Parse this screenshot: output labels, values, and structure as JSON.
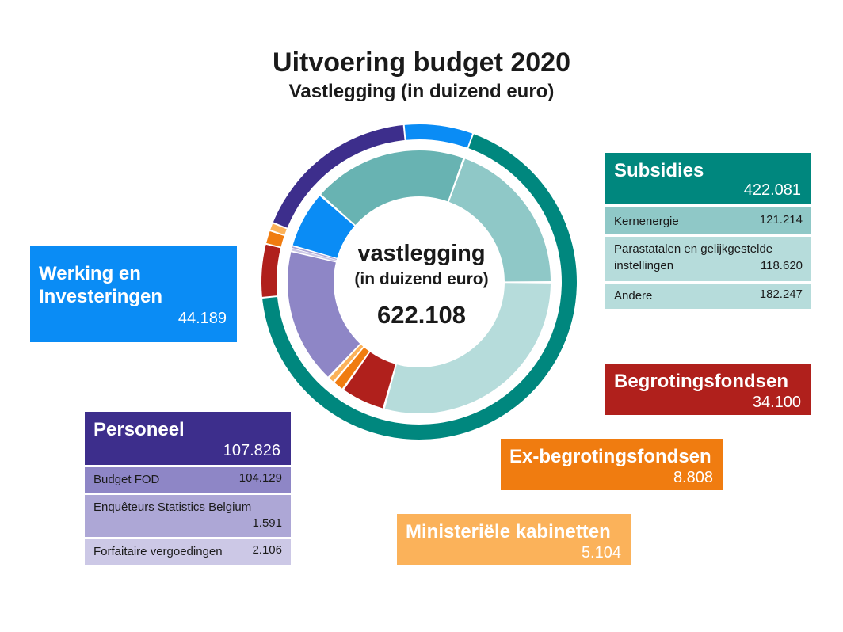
{
  "title": "Uitvoering budget 2020",
  "subtitle": "Vastlegging (in duizend euro)",
  "center": {
    "line1": "vastlegging",
    "line2": "(in duizend euro)",
    "total": "622.108"
  },
  "chart_data": {
    "type": "pie",
    "title": "Uitvoering budget 2020",
    "subtitle": "Vastlegging (in duizend euro)",
    "total": 622108,
    "outer_ring": [
      {
        "name": "Subsidies",
        "value": 422081,
        "color": "#00877e"
      },
      {
        "name": "Begrotingsfondsen",
        "value": 34100,
        "color": "#b0201c"
      },
      {
        "name": "Ex-begrotingsfondsen",
        "value": 8808,
        "color": "#f07c10"
      },
      {
        "name": "Ministeriële kabinetten",
        "value": 5104,
        "color": "#fbb25a"
      },
      {
        "name": "Personeel",
        "value": 107826,
        "color": "#3d2e8c"
      },
      {
        "name": "Werking en Investeringen",
        "value": 44189,
        "color": "#0a8cf5"
      }
    ],
    "inner_ring": [
      {
        "name": "Kernenergie",
        "value": 121214,
        "color": "#8fc8c7"
      },
      {
        "name": "Andere",
        "value": 182247,
        "color": "#b6dcdb"
      },
      {
        "name": "Begrotingsfondsen",
        "value": 34100,
        "color": "#b0201c"
      },
      {
        "name": "Ex-begrotingsfondsen",
        "value": 8808,
        "color": "#f07c10"
      },
      {
        "name": "Ministeriële kabinetten",
        "value": 5104,
        "color": "#fbb25a"
      },
      {
        "name": "Budget FOD",
        "value": 104129,
        "color": "#8e86c6"
      },
      {
        "name": "Forfaitaire vergoedingen",
        "value": 2106,
        "color": "#ccc8e6"
      },
      {
        "name": "Enquêteurs Statistics Belgium",
        "value": 1591,
        "color": "#ada7d6"
      },
      {
        "name": "Werking en Investeringen",
        "value": 44189,
        "color": "#0a8cf5"
      },
      {
        "name": "Parastatalen en gelijkgestelde instellingen",
        "value": 118620,
        "color": "#68b3b2"
      }
    ]
  },
  "categories": {
    "werking": {
      "label": "Werking en Investeringen",
      "value": "44.189"
    },
    "subsidies": {
      "label": "Subsidies",
      "value": "422.081",
      "items": [
        {
          "label": "Kernenergie",
          "value": "121.214"
        },
        {
          "label": "Parastatalen en gelijkgestelde instellingen",
          "value": "118.620"
        },
        {
          "label": "Andere",
          "value": "182.247"
        }
      ]
    },
    "begrotingsfondsen": {
      "label": "Begrotingsfondsen",
      "value": "34.100"
    },
    "exbegrotingsfondsen": {
      "label": "Ex-begrotingsfondsen",
      "value": "8.808"
    },
    "kabinetten": {
      "label": "Ministeriële kabinetten",
      "value": "5.104"
    },
    "personeel": {
      "label": "Personeel",
      "value": "107.826",
      "items": [
        {
          "label": "Budget FOD",
          "value": "104.129"
        },
        {
          "label": "Enquêteurs Statistics Belgium",
          "value": "1.591"
        },
        {
          "label": "Forfaitaire vergoedingen",
          "value": "2.106"
        }
      ]
    }
  }
}
